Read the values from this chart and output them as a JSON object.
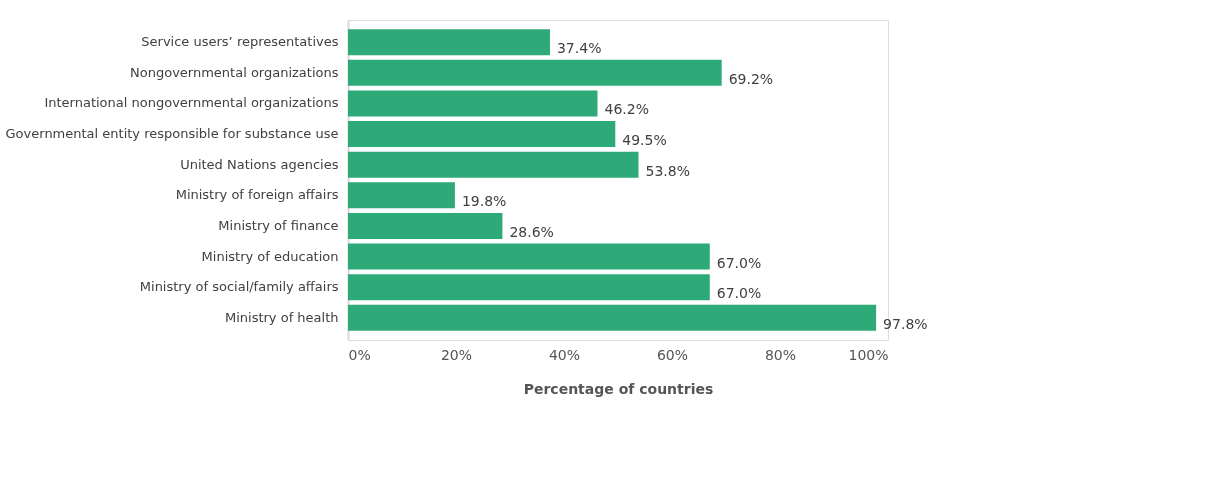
{
  "chart_data": {
    "type": "bar",
    "orientation": "horizontal",
    "xlabel": "Percentage of countries",
    "categories": [
      "Service users’ representatives",
      "Nongovernmental organizations",
      "International nongovernmental organizations",
      "Governmental entity responsible for substance use",
      "United Nations agencies",
      "Ministry of foreign affairs",
      "Ministry of finance",
      "Ministry of education",
      "Ministry of social/family affairs",
      "Ministry of health"
    ],
    "values": [
      37.4,
      69.2,
      46.2,
      49.5,
      53.8,
      19.8,
      28.6,
      67.0,
      67.0,
      97.8
    ],
    "value_labels": [
      "37.4%",
      "69.2%",
      "46.2%",
      "49.5%",
      "53.8%",
      "19.8%",
      "28.6%",
      "67.0%",
      "67.0%",
      "97.8%"
    ],
    "color": "#2eaa78",
    "xlim": [
      0,
      100
    ],
    "xticks": [
      {
        "value": 0,
        "label": "0%"
      },
      {
        "value": 20,
        "label": "20%"
      },
      {
        "value": 40,
        "label": "40%"
      },
      {
        "value": 60,
        "label": "60%"
      },
      {
        "value": 80,
        "label": "80%"
      },
      {
        "value": 100,
        "label": "100%"
      }
    ],
    "grid": false
  }
}
